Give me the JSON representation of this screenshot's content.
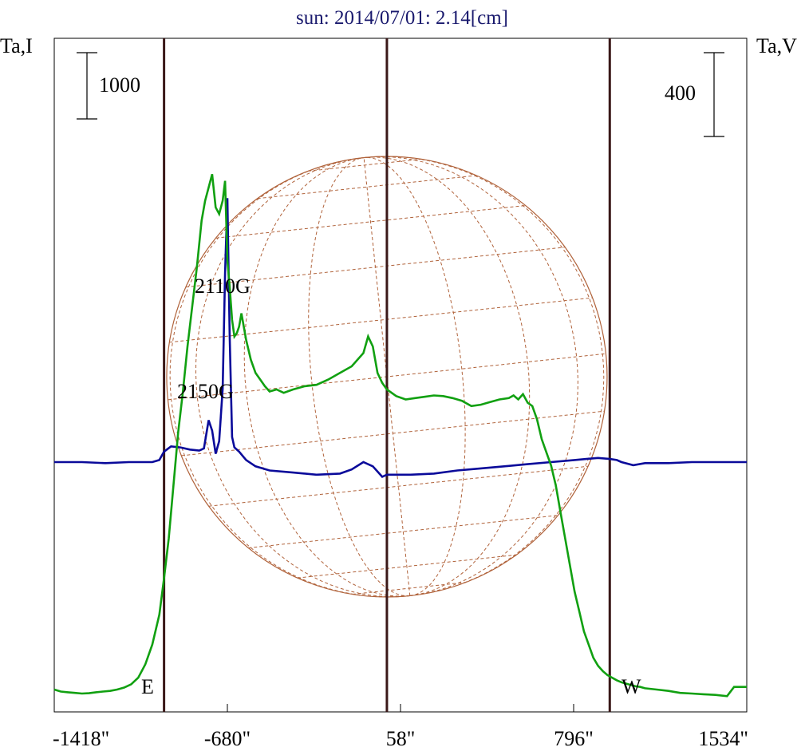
{
  "chart_data": {
    "type": "line",
    "title": "sun: 2014/07/01: 2.14[cm]",
    "ylabel_left": "Ta,I",
    "ylabel_right": "Ta,V",
    "x_ticks": [
      "-1418\"",
      "-680\"",
      "58\"",
      "796\"",
      "1534\""
    ],
    "x_tick_values": [
      -1418,
      -680,
      58,
      796,
      1534
    ],
    "xlim": [
      -1418,
      1534
    ],
    "limb_labels": {
      "east": "E",
      "west": "W"
    },
    "limb_positions": [
      -950,
      0,
      950
    ],
    "scale_bars": {
      "left": "1000",
      "right": "400"
    },
    "annotations": [
      {
        "text": "2110G",
        "x": -680,
        "series": "I"
      },
      {
        "text": "2150G",
        "x": -720,
        "series": "V"
      }
    ],
    "colors": {
      "I": "#11a011",
      "V": "#0a0a9a",
      "limb_lines": "#3a1818",
      "disk_grid": "#b0623a",
      "title": "#1a1a6e"
    },
    "series": [
      {
        "name": "I",
        "x": [
          -1418,
          -1390,
          -1360,
          -1330,
          -1300,
          -1270,
          -1240,
          -1210,
          -1180,
          -1150,
          -1120,
          -1090,
          -1060,
          -1030,
          -1000,
          -970,
          -950,
          -930,
          -910,
          -890,
          -870,
          -850,
          -830,
          -810,
          -790,
          -775,
          -760,
          -745,
          -730,
          -715,
          -700,
          -690,
          -680,
          -670,
          -660,
          -650,
          -640,
          -630,
          -620,
          -600,
          -580,
          -560,
          -540,
          -520,
          -500,
          -470,
          -440,
          -400,
          -350,
          -300,
          -250,
          -200,
          -150,
          -100,
          -80,
          -60,
          -40,
          -20,
          0,
          40,
          80,
          120,
          160,
          200,
          240,
          280,
          320,
          360,
          400,
          440,
          480,
          520,
          540,
          560,
          580,
          600,
          620,
          640,
          660,
          680,
          700,
          720,
          740,
          760,
          780,
          800,
          820,
          840,
          860,
          880,
          900,
          920,
          940,
          960,
          980,
          1000,
          1020,
          1040,
          1060,
          1080,
          1100,
          1150,
          1200,
          1250,
          1300,
          1350,
          1400,
          1450,
          1480,
          1500,
          1534
        ],
        "values": [
          120,
          90,
          80,
          70,
          60,
          65,
          80,
          90,
          100,
          120,
          150,
          200,
          300,
          500,
          800,
          1250,
          1800,
          2400,
          3200,
          4000,
          4600,
          5300,
          5900,
          6500,
          7200,
          7500,
          7700,
          7900,
          7400,
          7300,
          7500,
          7800,
          6600,
          6200,
          5700,
          5450,
          5500,
          5600,
          5800,
          5400,
          5100,
          4900,
          4800,
          4700,
          4620,
          4650,
          4600,
          4650,
          4700,
          4720,
          4800,
          4900,
          5000,
          5200,
          5450,
          5300,
          4900,
          4750,
          4650,
          4550,
          4500,
          4520,
          4540,
          4560,
          4550,
          4520,
          4480,
          4400,
          4420,
          4460,
          4500,
          4520,
          4560,
          4500,
          4580,
          4450,
          4400,
          4200,
          3900,
          3700,
          3500,
          3200,
          2800,
          2400,
          2000,
          1600,
          1300,
          1000,
          800,
          600,
          480,
          400,
          340,
          300,
          260,
          230,
          210,
          190,
          170,
          160,
          140,
          120,
          100,
          70,
          60,
          50,
          40,
          20,
          160,
          160,
          160
        ]
      },
      {
        "name": "V",
        "x": [
          -1418,
          -1300,
          -1200,
          -1100,
          -1000,
          -970,
          -950,
          -920,
          -880,
          -840,
          -800,
          -780,
          -760,
          -745,
          -730,
          -715,
          -700,
          -690,
          -680,
          -670,
          -660,
          -650,
          -630,
          -600,
          -560,
          -500,
          -400,
          -300,
          -200,
          -150,
          -100,
          -60,
          -20,
          0,
          40,
          100,
          200,
          300,
          400,
          500,
          600,
          700,
          800,
          850,
          900,
          950,
          980,
          1000,
          1050,
          1100,
          1200,
          1300,
          1400,
          1534
        ],
        "values": [
          0,
          0,
          -5,
          0,
          0,
          10,
          50,
          75,
          70,
          60,
          55,
          65,
          200,
          150,
          40,
          100,
          350,
          900,
          1260,
          600,
          120,
          70,
          50,
          10,
          -20,
          -40,
          -50,
          -60,
          -55,
          -35,
          0,
          -20,
          -70,
          -60,
          -60,
          -60,
          -55,
          -40,
          -30,
          -20,
          -10,
          0,
          10,
          15,
          20,
          15,
          10,
          0,
          -15,
          -5,
          -5,
          0,
          0,
          0
        ]
      }
    ]
  }
}
